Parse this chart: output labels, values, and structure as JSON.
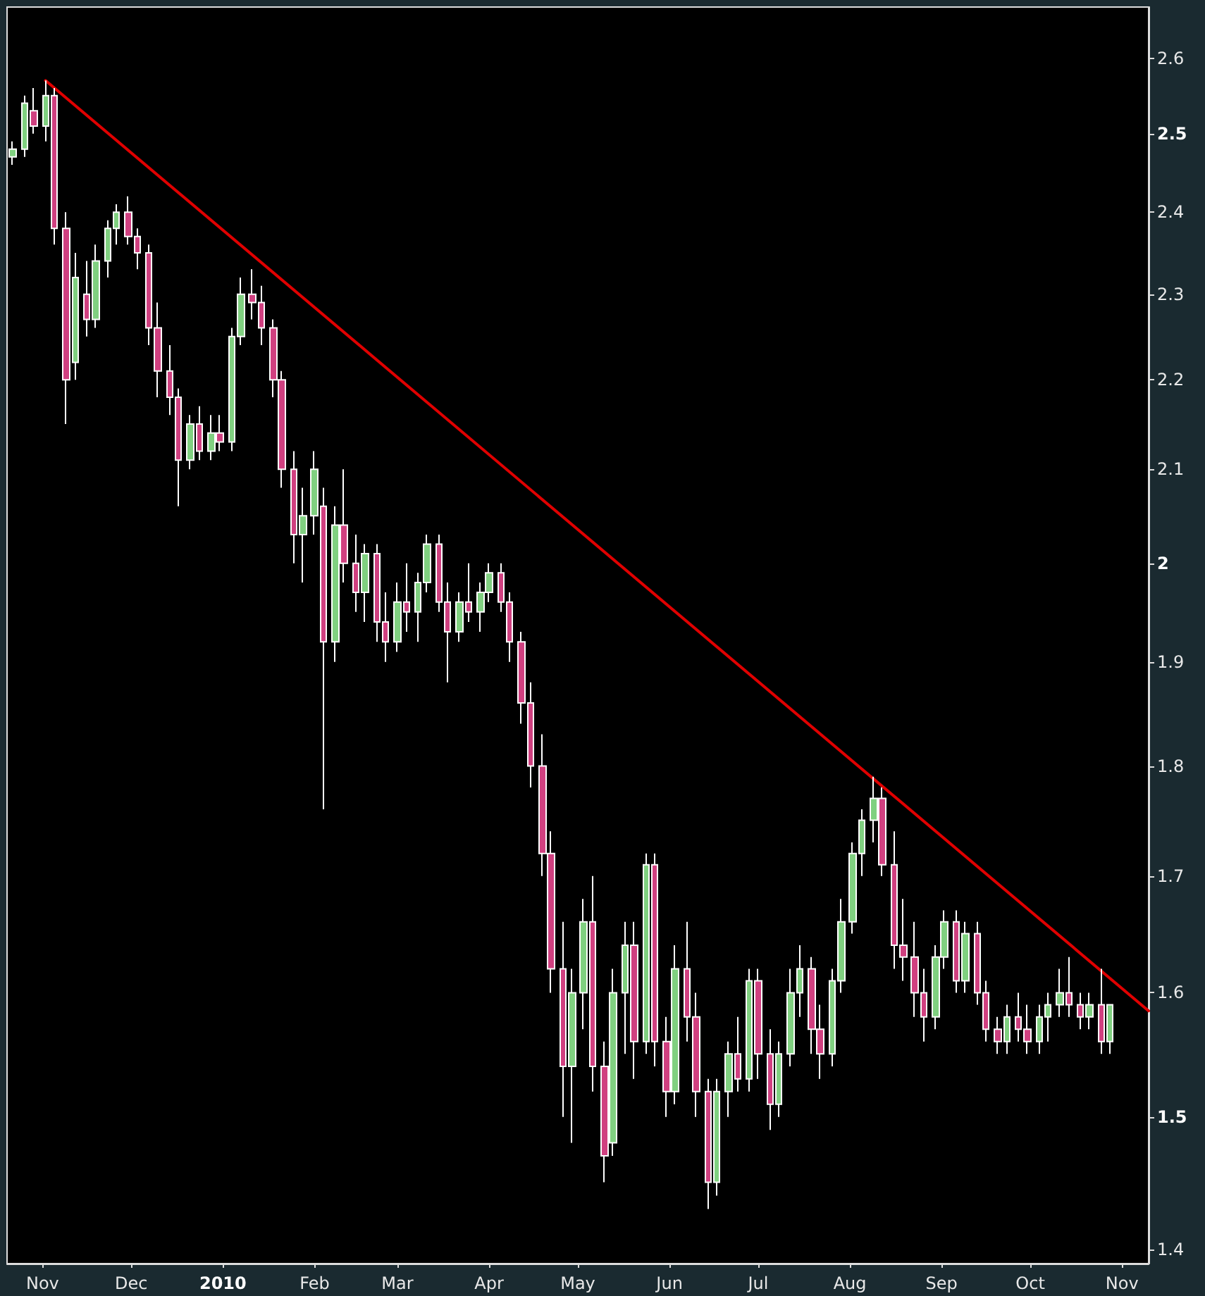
{
  "chart_data": {
    "type": "candlestick",
    "log": true,
    "grid": false,
    "xlim": [
      "2009-10-20",
      "2010-11-10"
    ],
    "xticks": [
      {
        "value": "2009-11-01",
        "label": "Nov"
      },
      {
        "value": "2009-12-01",
        "label": "Dec"
      },
      {
        "value": "2010-01-01",
        "label": "2010"
      },
      {
        "value": "2010-02-01",
        "label": "Feb"
      },
      {
        "value": "2010-03-01",
        "label": "Mar"
      },
      {
        "value": "2010-04-01",
        "label": "Apr"
      },
      {
        "value": "2010-05-01",
        "label": "May"
      },
      {
        "value": "2010-06-01",
        "label": "Jun"
      },
      {
        "value": "2010-07-01",
        "label": "Jul"
      },
      {
        "value": "2010-08-01",
        "label": "Aug"
      },
      {
        "value": "2010-09-01",
        "label": "Sep"
      },
      {
        "value": "2010-10-01",
        "label": "Oct"
      },
      {
        "value": "2010-11-01",
        "label": "Nov"
      }
    ],
    "ylim": [
      1.39,
      2.67
    ],
    "yticks": [
      1.4,
      1.5,
      1.6,
      1.7,
      1.8,
      1.9,
      2,
      2.1,
      2.2,
      2.3,
      2.4,
      2.5,
      2.6
    ],
    "series": [
      {
        "x": [
          "2009-10-22",
          "2009-10-26",
          "2009-10-29",
          "2009-11-02",
          "2009-11-05",
          "2009-11-09",
          "2009-11-12",
          "2009-11-16",
          "2009-11-19",
          "2009-11-23",
          "2009-11-26",
          "2009-11-30",
          "2009-12-03",
          "2009-12-07",
          "2009-12-10",
          "2009-12-14",
          "2009-12-17",
          "2009-12-21",
          "2009-12-24",
          "2009-12-28",
          "2009-12-31",
          "2010-01-04",
          "2010-01-07",
          "2010-01-11",
          "2010-01-14",
          "2010-01-18",
          "2010-01-21",
          "2010-01-25",
          "2010-01-28",
          "2010-02-01",
          "2010-02-04",
          "2010-02-08",
          "2010-02-11",
          "2010-02-15",
          "2010-02-18",
          "2010-02-22",
          "2010-02-25",
          "2010-03-01",
          "2010-03-04",
          "2010-03-08",
          "2010-03-11",
          "2010-03-15",
          "2010-03-18",
          "2010-03-22",
          "2010-03-25",
          "2010-03-29",
          "2010-04-01",
          "2010-04-05",
          "2010-04-08",
          "2010-04-12",
          "2010-04-15",
          "2010-04-19",
          "2010-04-22",
          "2010-04-26",
          "2010-04-29",
          "2010-05-03",
          "2010-05-06",
          "2010-05-10",
          "2010-05-13",
          "2010-05-17",
          "2010-05-20",
          "2010-05-24",
          "2010-05-27",
          "2010-05-31",
          "2010-06-03",
          "2010-06-07",
          "2010-06-10",
          "2010-06-14",
          "2010-06-17",
          "2010-06-21",
          "2010-06-24",
          "2010-06-28",
          "2010-07-01",
          "2010-07-05",
          "2010-07-08",
          "2010-07-12",
          "2010-07-15",
          "2010-07-19",
          "2010-07-22",
          "2010-07-26",
          "2010-07-29",
          "2010-08-02",
          "2010-08-05",
          "2010-08-09",
          "2010-08-12",
          "2010-08-16",
          "2010-08-19",
          "2010-08-23",
          "2010-08-26",
          "2010-08-30",
          "2010-09-02",
          "2010-09-06",
          "2010-09-09",
          "2010-09-13",
          "2010-09-16",
          "2010-09-20",
          "2010-09-23",
          "2010-09-27",
          "2010-09-30",
          "2010-10-04",
          "2010-10-07",
          "2010-10-11",
          "2010-10-14",
          "2010-10-18",
          "2010-10-21",
          "2010-10-25",
          "2010-10-28"
        ],
        "ohlc": [
          [
            2.47,
            2.49,
            2.46,
            2.48
          ],
          [
            2.48,
            2.55,
            2.47,
            2.54
          ],
          [
            2.53,
            2.56,
            2.5,
            2.51
          ],
          [
            2.51,
            2.57,
            2.49,
            2.55
          ],
          [
            2.55,
            2.56,
            2.36,
            2.38
          ],
          [
            2.38,
            2.4,
            2.15,
            2.2
          ],
          [
            2.22,
            2.35,
            2.2,
            2.32
          ],
          [
            2.3,
            2.34,
            2.25,
            2.27
          ],
          [
            2.27,
            2.36,
            2.26,
            2.34
          ],
          [
            2.34,
            2.39,
            2.32,
            2.38
          ],
          [
            2.38,
            2.41,
            2.36,
            2.4
          ],
          [
            2.4,
            2.42,
            2.36,
            2.37
          ],
          [
            2.37,
            2.38,
            2.33,
            2.35
          ],
          [
            2.35,
            2.36,
            2.24,
            2.26
          ],
          [
            2.26,
            2.29,
            2.18,
            2.21
          ],
          [
            2.21,
            2.24,
            2.16,
            2.18
          ],
          [
            2.18,
            2.19,
            2.06,
            2.11
          ],
          [
            2.11,
            2.16,
            2.1,
            2.15
          ],
          [
            2.15,
            2.17,
            2.11,
            2.12
          ],
          [
            2.12,
            2.16,
            2.11,
            2.14
          ],
          [
            2.14,
            2.16,
            2.12,
            2.13
          ],
          [
            2.13,
            2.26,
            2.12,
            2.25
          ],
          [
            2.25,
            2.32,
            2.24,
            2.3
          ],
          [
            2.3,
            2.33,
            2.27,
            2.29
          ],
          [
            2.29,
            2.31,
            2.24,
            2.26
          ],
          [
            2.26,
            2.27,
            2.18,
            2.2
          ],
          [
            2.2,
            2.21,
            2.08,
            2.1
          ],
          [
            2.1,
            2.12,
            2.0,
            2.03
          ],
          [
            2.03,
            2.08,
            1.98,
            2.05
          ],
          [
            2.05,
            2.12,
            2.03,
            2.1
          ],
          [
            2.06,
            2.08,
            1.76,
            1.92
          ],
          [
            1.92,
            2.06,
            1.9,
            2.04
          ],
          [
            2.04,
            2.1,
            1.98,
            2.0
          ],
          [
            2.0,
            2.03,
            1.95,
            1.97
          ],
          [
            1.97,
            2.02,
            1.94,
            2.01
          ],
          [
            2.01,
            2.02,
            1.92,
            1.94
          ],
          [
            1.94,
            1.97,
            1.9,
            1.92
          ],
          [
            1.92,
            1.98,
            1.91,
            1.96
          ],
          [
            1.96,
            2.0,
            1.93,
            1.95
          ],
          [
            1.95,
            1.99,
            1.92,
            1.98
          ],
          [
            1.98,
            2.03,
            1.97,
            2.02
          ],
          [
            2.02,
            2.03,
            1.95,
            1.96
          ],
          [
            1.96,
            1.98,
            1.88,
            1.93
          ],
          [
            1.93,
            1.97,
            1.92,
            1.96
          ],
          [
            1.96,
            2.0,
            1.94,
            1.95
          ],
          [
            1.95,
            1.98,
            1.93,
            1.97
          ],
          [
            1.97,
            2.0,
            1.96,
            1.99
          ],
          [
            1.99,
            2.0,
            1.95,
            1.96
          ],
          [
            1.96,
            1.97,
            1.9,
            1.92
          ],
          [
            1.92,
            1.93,
            1.84,
            1.86
          ],
          [
            1.86,
            1.88,
            1.78,
            1.8
          ],
          [
            1.8,
            1.83,
            1.7,
            1.72
          ],
          [
            1.72,
            1.74,
            1.6,
            1.62
          ],
          [
            1.62,
            1.66,
            1.5,
            1.54
          ],
          [
            1.54,
            1.62,
            1.48,
            1.6
          ],
          [
            1.6,
            1.68,
            1.57,
            1.66
          ],
          [
            1.66,
            1.7,
            1.52,
            1.54
          ],
          [
            1.54,
            1.56,
            1.45,
            1.47
          ],
          [
            1.48,
            1.62,
            1.47,
            1.6
          ],
          [
            1.6,
            1.66,
            1.55,
            1.64
          ],
          [
            1.64,
            1.66,
            1.53,
            1.56
          ],
          [
            1.56,
            1.72,
            1.55,
            1.71
          ],
          [
            1.71,
            1.72,
            1.54,
            1.56
          ],
          [
            1.56,
            1.58,
            1.5,
            1.52
          ],
          [
            1.52,
            1.64,
            1.51,
            1.62
          ],
          [
            1.62,
            1.66,
            1.56,
            1.58
          ],
          [
            1.58,
            1.6,
            1.5,
            1.52
          ],
          [
            1.52,
            1.53,
            1.43,
            1.45
          ],
          [
            1.45,
            1.53,
            1.44,
            1.52
          ],
          [
            1.52,
            1.56,
            1.5,
            1.55
          ],
          [
            1.55,
            1.58,
            1.52,
            1.53
          ],
          [
            1.53,
            1.62,
            1.52,
            1.61
          ],
          [
            1.61,
            1.62,
            1.53,
            1.55
          ],
          [
            1.55,
            1.57,
            1.49,
            1.51
          ],
          [
            1.51,
            1.56,
            1.5,
            1.55
          ],
          [
            1.55,
            1.62,
            1.54,
            1.6
          ],
          [
            1.6,
            1.64,
            1.58,
            1.62
          ],
          [
            1.62,
            1.63,
            1.55,
            1.57
          ],
          [
            1.57,
            1.59,
            1.53,
            1.55
          ],
          [
            1.55,
            1.62,
            1.54,
            1.61
          ],
          [
            1.61,
            1.68,
            1.6,
            1.66
          ],
          [
            1.66,
            1.73,
            1.65,
            1.72
          ],
          [
            1.72,
            1.76,
            1.7,
            1.75
          ],
          [
            1.75,
            1.79,
            1.73,
            1.77
          ],
          [
            1.77,
            1.78,
            1.7,
            1.71
          ],
          [
            1.71,
            1.74,
            1.62,
            1.64
          ],
          [
            1.64,
            1.68,
            1.61,
            1.63
          ],
          [
            1.63,
            1.66,
            1.58,
            1.6
          ],
          [
            1.6,
            1.62,
            1.56,
            1.58
          ],
          [
            1.58,
            1.64,
            1.57,
            1.63
          ],
          [
            1.63,
            1.67,
            1.62,
            1.66
          ],
          [
            1.66,
            1.67,
            1.6,
            1.61
          ],
          [
            1.61,
            1.66,
            1.6,
            1.65
          ],
          [
            1.65,
            1.66,
            1.59,
            1.6
          ],
          [
            1.6,
            1.61,
            1.56,
            1.57
          ],
          [
            1.57,
            1.58,
            1.55,
            1.56
          ],
          [
            1.56,
            1.59,
            1.55,
            1.58
          ],
          [
            1.58,
            1.6,
            1.56,
            1.57
          ],
          [
            1.57,
            1.59,
            1.55,
            1.56
          ],
          [
            1.56,
            1.59,
            1.55,
            1.58
          ],
          [
            1.58,
            1.6,
            1.56,
            1.59
          ],
          [
            1.59,
            1.62,
            1.58,
            1.6
          ],
          [
            1.6,
            1.63,
            1.58,
            1.59
          ],
          [
            1.59,
            1.6,
            1.57,
            1.58
          ],
          [
            1.58,
            1.6,
            1.57,
            1.59
          ],
          [
            1.59,
            1.62,
            1.55,
            1.56
          ],
          [
            1.56,
            1.59,
            1.55,
            1.59
          ]
        ],
        "colors": [
          "#80d080",
          "#80d080",
          "#d04080",
          "#80d080",
          "#d04080",
          "#d04080",
          "#80d080",
          "#d04080",
          "#80d080",
          "#80d080",
          "#80d080",
          "#d04080",
          "#d04080",
          "#d04080",
          "#d04080",
          "#d04080",
          "#d04080",
          "#80d080",
          "#d04080",
          "#80d080",
          "#d04080",
          "#80d080",
          "#80d080",
          "#d04080",
          "#d04080",
          "#d04080",
          "#d04080",
          "#d04080",
          "#80d080",
          "#80d080",
          "#d04080",
          "#80d080",
          "#d04080",
          "#d04080",
          "#80d080",
          "#d04080",
          "#d04080",
          "#80d080",
          "#d04080",
          "#80d080",
          "#80d080",
          "#d04080",
          "#d04080",
          "#80d080",
          "#d04080",
          "#80d080",
          "#80d080",
          "#d04080",
          "#d04080",
          "#d04080",
          "#d04080",
          "#d04080",
          "#d04080",
          "#d04080",
          "#80d080",
          "#80d080",
          "#d04080",
          "#d04080",
          "#80d080",
          "#80d080",
          "#d04080",
          "#80d080",
          "#d04080",
          "#d04080",
          "#80d080",
          "#d04080",
          "#d04080",
          "#d04080",
          "#80d080",
          "#80d080",
          "#d04080",
          "#80d080",
          "#d04080",
          "#d04080",
          "#80d080",
          "#80d080",
          "#80d080",
          "#d04080",
          "#d04080",
          "#80d080",
          "#80d080",
          "#80d080",
          "#80d080",
          "#80d080",
          "#d04080",
          "#d04080",
          "#d04080",
          "#d04080",
          "#d04080",
          "#80d080",
          "#80d080",
          "#d04080",
          "#80d080",
          "#d04080",
          "#d04080",
          "#d04080",
          "#80d080",
          "#d04080",
          "#d04080",
          "#80d080",
          "#80d080",
          "#80d080",
          "#d04080",
          "#d04080",
          "#80d080",
          "#d04080",
          "#80d080"
        ]
      },
      {
        "type": "line",
        "color": "#e00000",
        "x": [
          "2009-11-02",
          "2010-11-10"
        ],
        "values": [
          2.57,
          1.585
        ]
      }
    ]
  }
}
